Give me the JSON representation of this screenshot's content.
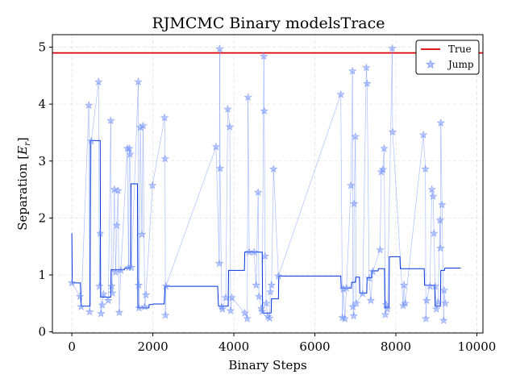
{
  "chart_data": {
    "type": "line",
    "title": "RJMCMC Binary modelsTrace",
    "xlabel": "Binary Steps",
    "ylabel_main": "Separation [",
    "ylabel_sym": "E",
    "ylabel_sub": "r",
    "ylabel_close": "]",
    "xlim": [
      -480,
      10150
    ],
    "ylim": [
      -0.02,
      5.22
    ],
    "x_ticks": [
      0,
      2000,
      4000,
      6000,
      8000,
      10000
    ],
    "x_tick_labels": [
      "0",
      "2000",
      "4000",
      "6000",
      "8000",
      "10000"
    ],
    "y_ticks": [
      0,
      1,
      2,
      3,
      4,
      5
    ],
    "y_tick_labels": [
      "0",
      "1",
      "2",
      "3",
      "4",
      "5"
    ],
    "grid": true,
    "legend_position": "top-right",
    "legend": [
      "True",
      "Jump"
    ],
    "colors": {
      "true": "#dd0000",
      "trace": "#0033dd",
      "jump": "#6a8cff"
    },
    "true_value": 4.9,
    "trace": [
      [
        0,
        1.73
      ],
      [
        10,
        0.86
      ],
      [
        210,
        0.86
      ],
      [
        230,
        0.45
      ],
      [
        450,
        0.45
      ],
      [
        460,
        3.36
      ],
      [
        700,
        3.36
      ],
      [
        710,
        0.61
      ],
      [
        960,
        0.61
      ],
      [
        970,
        1.09
      ],
      [
        1300,
        1.09
      ],
      [
        1310,
        1.12
      ],
      [
        1450,
        1.12
      ],
      [
        1460,
        2.6
      ],
      [
        1620,
        2.6
      ],
      [
        1630,
        0.42
      ],
      [
        1900,
        0.42
      ],
      [
        1910,
        0.48
      ],
      [
        2000,
        0.48
      ],
      [
        2010,
        0.49
      ],
      [
        2280,
        0.49
      ],
      [
        2300,
        0.8
      ],
      [
        3600,
        0.8
      ],
      [
        3620,
        0.45
      ],
      [
        3860,
        0.45
      ],
      [
        3870,
        1.08
      ],
      [
        4260,
        1.08
      ],
      [
        4270,
        1.4
      ],
      [
        4700,
        1.4
      ],
      [
        4710,
        0.33
      ],
      [
        4920,
        0.33
      ],
      [
        4930,
        0.58
      ],
      [
        5100,
        0.58
      ],
      [
        5110,
        0.98
      ],
      [
        6640,
        0.98
      ],
      [
        6650,
        0.77
      ],
      [
        6900,
        0.77
      ],
      [
        6910,
        0.87
      ],
      [
        7000,
        0.87
      ],
      [
        7010,
        0.96
      ],
      [
        7100,
        0.96
      ],
      [
        7110,
        0.68
      ],
      [
        7280,
        0.68
      ],
      [
        7290,
        0.95
      ],
      [
        7400,
        0.95
      ],
      [
        7410,
        1.07
      ],
      [
        7560,
        1.07
      ],
      [
        7570,
        1.11
      ],
      [
        7720,
        1.11
      ],
      [
        7730,
        0.43
      ],
      [
        7830,
        0.43
      ],
      [
        7840,
        1.32
      ],
      [
        8100,
        1.32
      ],
      [
        8110,
        1.11
      ],
      [
        8700,
        1.11
      ],
      [
        8710,
        0.82
      ],
      [
        8960,
        0.82
      ],
      [
        8970,
        0.45
      ],
      [
        9100,
        0.45
      ],
      [
        9110,
        1.08
      ],
      [
        9200,
        1.08
      ],
      [
        9210,
        1.12
      ],
      [
        9600,
        1.12
      ]
    ],
    "jumps": [
      [
        0,
        0.86
      ],
      [
        200,
        0.62
      ],
      [
        230,
        0.44
      ],
      [
        420,
        3.98
      ],
      [
        440,
        0.35
      ],
      [
        480,
        3.35
      ],
      [
        660,
        4.39
      ],
      [
        680,
        0.8
      ],
      [
        700,
        1.73
      ],
      [
        720,
        0.32
      ],
      [
        750,
        0.47
      ],
      [
        780,
        0.66
      ],
      [
        900,
        0.55
      ],
      [
        960,
        3.71
      ],
      [
        980,
        0.8
      ],
      [
        1000,
        0.68
      ],
      [
        1050,
        2.5
      ],
      [
        1080,
        1.05
      ],
      [
        1110,
        1.87
      ],
      [
        1140,
        2.48
      ],
      [
        1170,
        0.34
      ],
      [
        1210,
        1.08
      ],
      [
        1370,
        3.22
      ],
      [
        1400,
        1.13
      ],
      [
        1420,
        3.22
      ],
      [
        1440,
        3.12
      ],
      [
        1470,
        1.13
      ],
      [
        1640,
        4.39
      ],
      [
        1650,
        0.82
      ],
      [
        1660,
        0.42
      ],
      [
        1690,
        3.59
      ],
      [
        1730,
        1.71
      ],
      [
        1760,
        3.62
      ],
      [
        1800,
        0.44
      ],
      [
        1830,
        0.65
      ],
      [
        1990,
        2.57
      ],
      [
        2290,
        3.76
      ],
      [
        2300,
        3.04
      ],
      [
        2310,
        0.29
      ],
      [
        2320,
        0.8
      ],
      [
        3560,
        3.25
      ],
      [
        3640,
        1.2
      ],
      [
        3650,
        4.97
      ],
      [
        3660,
        2.87
      ],
      [
        3700,
        0.44
      ],
      [
        3720,
        0.4
      ],
      [
        3800,
        0.6
      ],
      [
        3850,
        3.91
      ],
      [
        3900,
        3.6
      ],
      [
        3920,
        0.37
      ],
      [
        3950,
        0.6
      ],
      [
        4270,
        0.33
      ],
      [
        4330,
        0.23
      ],
      [
        4350,
        4.12
      ],
      [
        4380,
        1.4
      ],
      [
        4500,
        1.4
      ],
      [
        4550,
        0.82
      ],
      [
        4600,
        2.45
      ],
      [
        4620,
        0.62
      ],
      [
        4680,
        0.41
      ],
      [
        4700,
        0.36
      ],
      [
        4740,
        4.84
      ],
      [
        4750,
        3.88
      ],
      [
        4770,
        1.33
      ],
      [
        4800,
        0.5
      ],
      [
        4840,
        0.27
      ],
      [
        4880,
        0.24
      ],
      [
        4900,
        0.7
      ],
      [
        4930,
        0.82
      ],
      [
        4980,
        2.86
      ],
      [
        5100,
        0.98
      ],
      [
        6640,
        4.17
      ],
      [
        6680,
        0.25
      ],
      [
        6700,
        0.75
      ],
      [
        6740,
        0.23
      ],
      [
        6780,
        0.77
      ],
      [
        6890,
        2.57
      ],
      [
        6930,
        4.58
      ],
      [
        6940,
        0.44
      ],
      [
        6960,
        0.28
      ],
      [
        6970,
        2.25
      ],
      [
        7000,
        3.43
      ],
      [
        7020,
        0.5
      ],
      [
        7180,
        0.67
      ],
      [
        7270,
        4.64
      ],
      [
        7290,
        4.36
      ],
      [
        7340,
        0.94
      ],
      [
        7380,
        0.55
      ],
      [
        7430,
        1.06
      ],
      [
        7610,
        1.44
      ],
      [
        7640,
        2.81
      ],
      [
        7680,
        2.85
      ],
      [
        7710,
        3.22
      ],
      [
        7740,
        0.3
      ],
      [
        7760,
        0.48
      ],
      [
        7790,
        0.4
      ],
      [
        7910,
        4.98
      ],
      [
        7920,
        3.51
      ],
      [
        8180,
        0.46
      ],
      [
        8200,
        0.82
      ],
      [
        8230,
        0.5
      ],
      [
        8680,
        3.46
      ],
      [
        8730,
        2.86
      ],
      [
        8740,
        0.23
      ],
      [
        8760,
        0.55
      ],
      [
        8840,
        0.8
      ],
      [
        8890,
        2.5
      ],
      [
        8920,
        2.38
      ],
      [
        8940,
        1.73
      ],
      [
        8970,
        0.8
      ],
      [
        9000,
        0.4
      ],
      [
        9040,
        0.52
      ],
      [
        9090,
        1.96
      ],
      [
        9100,
        1.47
      ],
      [
        9110,
        3.67
      ],
      [
        9140,
        2.23
      ],
      [
        9180,
        0.2
      ],
      [
        9190,
        0.73
      ],
      [
        9220,
        0.5
      ]
    ]
  }
}
